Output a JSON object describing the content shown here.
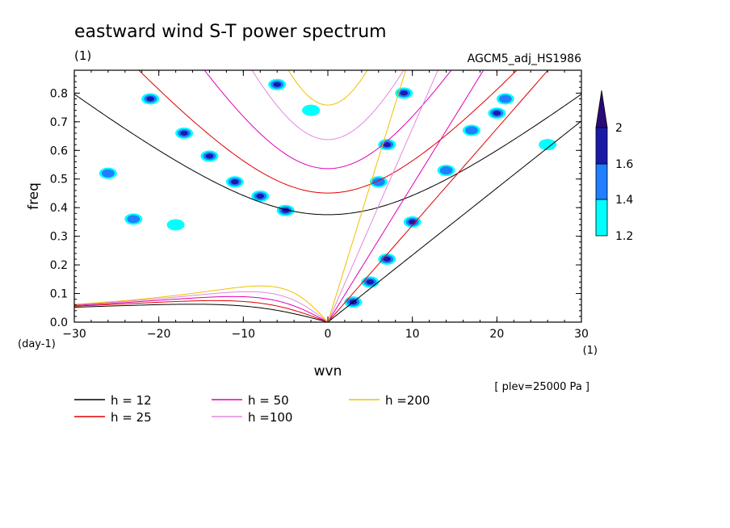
{
  "chart_data": {
    "type": "heatmap",
    "title": "eastward wind S-T power spectrum",
    "subtitle_left": "(1)",
    "subtitle_right": "AGCM5_adj_HS1986",
    "xlabel": "wvn",
    "ylabel": "freq",
    "x_unit": "(1)",
    "y_unit": "(day-1)",
    "note": "[ plev=25000 Pa ]",
    "xlim": [
      -30,
      30
    ],
    "ylim": [
      0,
      0.88
    ],
    "xticks": [
      -30,
      -20,
      -10,
      0,
      10,
      20,
      30
    ],
    "yticks": [
      0.0,
      0.1,
      0.2,
      0.3,
      0.4,
      0.5,
      0.6,
      0.7,
      0.8
    ],
    "xtick_labels": [
      "−30",
      "−20",
      "−10",
      "0",
      "10",
      "20",
      "30"
    ],
    "ytick_labels": [
      "0.0",
      "0.1",
      "0.2",
      "0.3",
      "0.4",
      "0.5",
      "0.6",
      "0.7",
      "0.8"
    ],
    "colorbar": {
      "levels": [
        1.2,
        1.4,
        1.6,
        2
      ],
      "level_labels": [
        "1.2",
        "1.4",
        "1.6",
        "2"
      ],
      "colors": [
        "#00ffff",
        "#1f7fff",
        "#1a1aa8",
        "#2a0a78"
      ]
    },
    "dispersion_curves": [
      {
        "name": "h = 12",
        "h": 12,
        "color": "#000000"
      },
      {
        "name": "h = 25",
        "h": 25,
        "color": "#e00000"
      },
      {
        "name": "h = 50",
        "h": 50,
        "color": "#e000b0"
      },
      {
        "name": "h =100",
        "h": 100,
        "color": "#e088e0"
      },
      {
        "name": "h =200",
        "h": 200,
        "color": "#f0c000"
      }
    ],
    "spectral_peaks": [
      {
        "wvn": -17,
        "freq": 0.66,
        "power": 1.7
      },
      {
        "wvn": -14,
        "freq": 0.58,
        "power": 1.7
      },
      {
        "wvn": -11,
        "freq": 0.49,
        "power": 1.7
      },
      {
        "wvn": -8,
        "freq": 0.44,
        "power": 1.65
      },
      {
        "wvn": -5,
        "freq": 0.39,
        "power": 1.6
      },
      {
        "wvn": -21,
        "freq": 0.78,
        "power": 1.6
      },
      {
        "wvn": -6,
        "freq": 0.83,
        "power": 1.6
      },
      {
        "wvn": 9,
        "freq": 0.8,
        "power": 1.8
      },
      {
        "wvn": 7,
        "freq": 0.62,
        "power": 1.7
      },
      {
        "wvn": 6,
        "freq": 0.49,
        "power": 1.5
      },
      {
        "wvn": 10,
        "freq": 0.35,
        "power": 1.7
      },
      {
        "wvn": 7,
        "freq": 0.22,
        "power": 1.8
      },
      {
        "wvn": 5,
        "freq": 0.14,
        "power": 1.8
      },
      {
        "wvn": 3,
        "freq": 0.07,
        "power": 1.7
      },
      {
        "wvn": 20,
        "freq": 0.73,
        "power": 1.6
      },
      {
        "wvn": 17,
        "freq": 0.67,
        "power": 1.5
      },
      {
        "wvn": 14,
        "freq": 0.53,
        "power": 1.4
      },
      {
        "wvn": 21,
        "freq": 0.78,
        "power": 1.4
      },
      {
        "wvn": -26,
        "freq": 0.52,
        "power": 1.4
      },
      {
        "wvn": -23,
        "freq": 0.36,
        "power": 1.4
      },
      {
        "wvn": -18,
        "freq": 0.34,
        "power": 1.3
      },
      {
        "wvn": 26,
        "freq": 0.62,
        "power": 1.3
      },
      {
        "wvn": -2,
        "freq": 0.74,
        "power": 1.3
      }
    ]
  }
}
